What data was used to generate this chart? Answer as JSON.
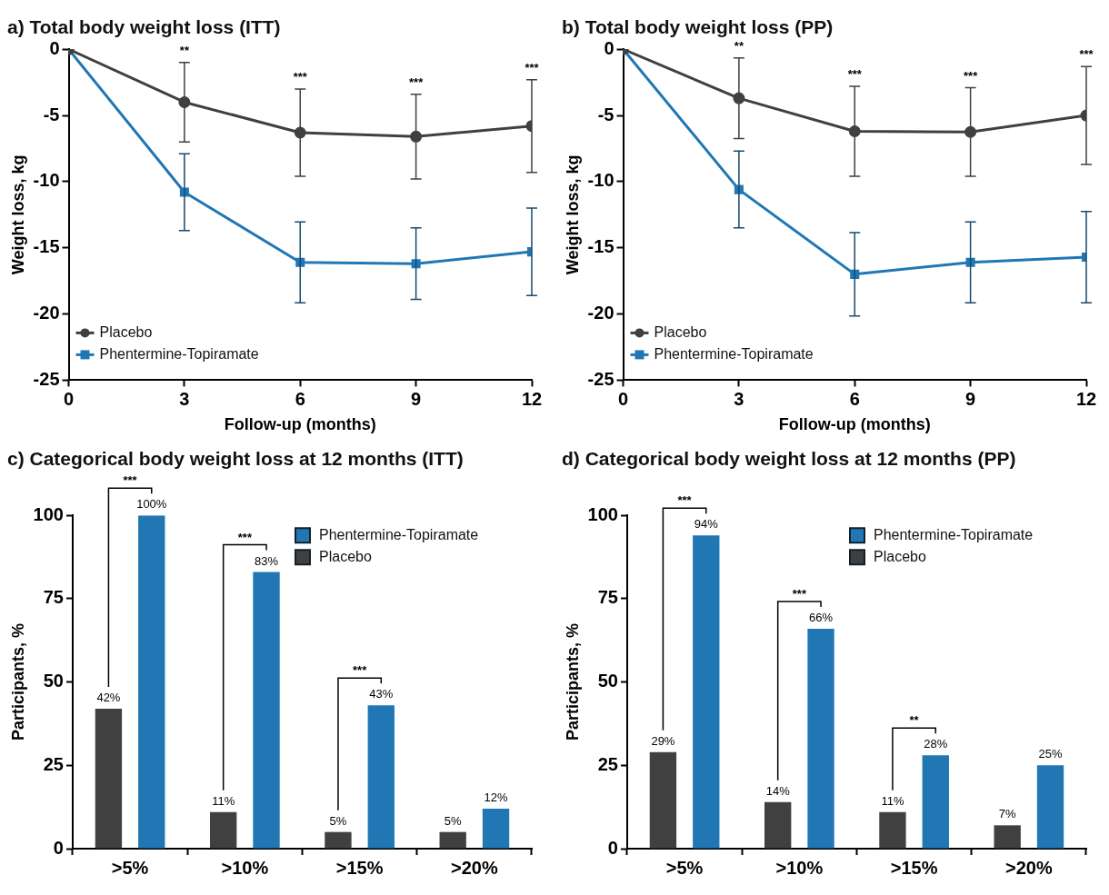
{
  "chart_data": [
    {
      "type": "line",
      "title": "a) Total body weight loss (ITT)",
      "xlabel": "Follow-up (months)",
      "ylabel": "Weight loss, kg",
      "x": [
        0,
        3,
        6,
        9,
        12
      ],
      "xlim": [
        0,
        12
      ],
      "xticks": [
        0,
        3,
        6,
        9,
        12
      ],
      "ylim": [
        -25,
        0
      ],
      "yticks": [
        0,
        -5,
        -10,
        -15,
        -20,
        -25
      ],
      "grid": false,
      "legend": "bottom left",
      "series": [
        {
          "name": "Placebo",
          "color": "#404040",
          "marker": "circle",
          "values": [
            0,
            -4.0,
            -6.3,
            -6.6,
            -5.8
          ],
          "errors": [
            null,
            3.0,
            3.3,
            3.2,
            3.5
          ]
        },
        {
          "name": "Phentermine-Topiramate",
          "color": "#2077b4",
          "marker": "square",
          "values": [
            0,
            -10.8,
            -16.1,
            -16.2,
            -15.3
          ],
          "errors": [
            null,
            2.9,
            3.05,
            2.7,
            3.3
          ]
        }
      ],
      "annotations": [
        "**",
        "***",
        "***",
        "***"
      ]
    },
    {
      "type": "line",
      "title": "b) Total body weight loss (PP)",
      "xlabel": "Follow-up (months)",
      "ylabel": "Weight loss, kg",
      "x": [
        0,
        3,
        6,
        9,
        12
      ],
      "xlim": [
        0,
        12
      ],
      "xticks": [
        0,
        3,
        6,
        9,
        12
      ],
      "ylim": [
        -25,
        0
      ],
      "yticks": [
        0,
        -5,
        -10,
        -15,
        -20,
        -25
      ],
      "grid": false,
      "legend": "bottom left",
      "series": [
        {
          "name": "Placebo",
          "color": "#404040",
          "marker": "circle",
          "values": [
            0,
            -3.7,
            -6.2,
            -6.25,
            -5.0
          ],
          "errors": [
            null,
            3.05,
            3.4,
            3.35,
            3.7
          ]
        },
        {
          "name": "Phentermine-Topiramate",
          "color": "#2077b4",
          "marker": "square",
          "values": [
            0,
            -10.6,
            -17.0,
            -16.1,
            -15.7
          ],
          "errors": [
            null,
            2.9,
            3.15,
            3.05,
            3.45
          ]
        }
      ],
      "annotations": [
        "**",
        "***",
        "***",
        "***"
      ]
    },
    {
      "type": "bar",
      "title": "c) Categorical body weight loss at 12 months (ITT)",
      "ylabel": "Participants, %",
      "categories": [
        ">5%",
        ">10%",
        ">15%",
        ">20%"
      ],
      "ylim": [
        0,
        100
      ],
      "yticks": [
        0,
        25,
        50,
        75,
        100
      ],
      "grid": false,
      "legend": "top right",
      "series": [
        {
          "name": "Placebo",
          "color": "#404040",
          "values": [
            42,
            11,
            5,
            5
          ],
          "value_labels": [
            "42%",
            "11%",
            "5%",
            "5%"
          ]
        },
        {
          "name": "Phentermine-Topiramate",
          "color": "#2077b4",
          "values": [
            100,
            83,
            43,
            12
          ],
          "value_labels": [
            "100%",
            "83%",
            "43%",
            "12%"
          ]
        }
      ],
      "annotations": [
        "***",
        "***",
        "***"
      ]
    },
    {
      "type": "bar",
      "title": "d) Categorical body weight loss at 12 months (PP)",
      "ylabel": "Participants, %",
      "categories": [
        ">5%",
        ">10%",
        ">15%",
        ">20%"
      ],
      "ylim": [
        0,
        100
      ],
      "yticks": [
        0,
        25,
        50,
        75,
        100
      ],
      "grid": false,
      "legend": "top right",
      "series": [
        {
          "name": "Placebo",
          "color": "#404040",
          "values": [
            29,
            14,
            11,
            7
          ],
          "value_labels": [
            "29%",
            "14%",
            "11%",
            "7%"
          ]
        },
        {
          "name": "Phentermine-Topiramate",
          "color": "#2077b4",
          "values": [
            94,
            66,
            28,
            25
          ],
          "value_labels": [
            "94%",
            "66%",
            "28%",
            "25%"
          ]
        }
      ],
      "annotations": [
        "***",
        "***",
        "**"
      ]
    }
  ]
}
